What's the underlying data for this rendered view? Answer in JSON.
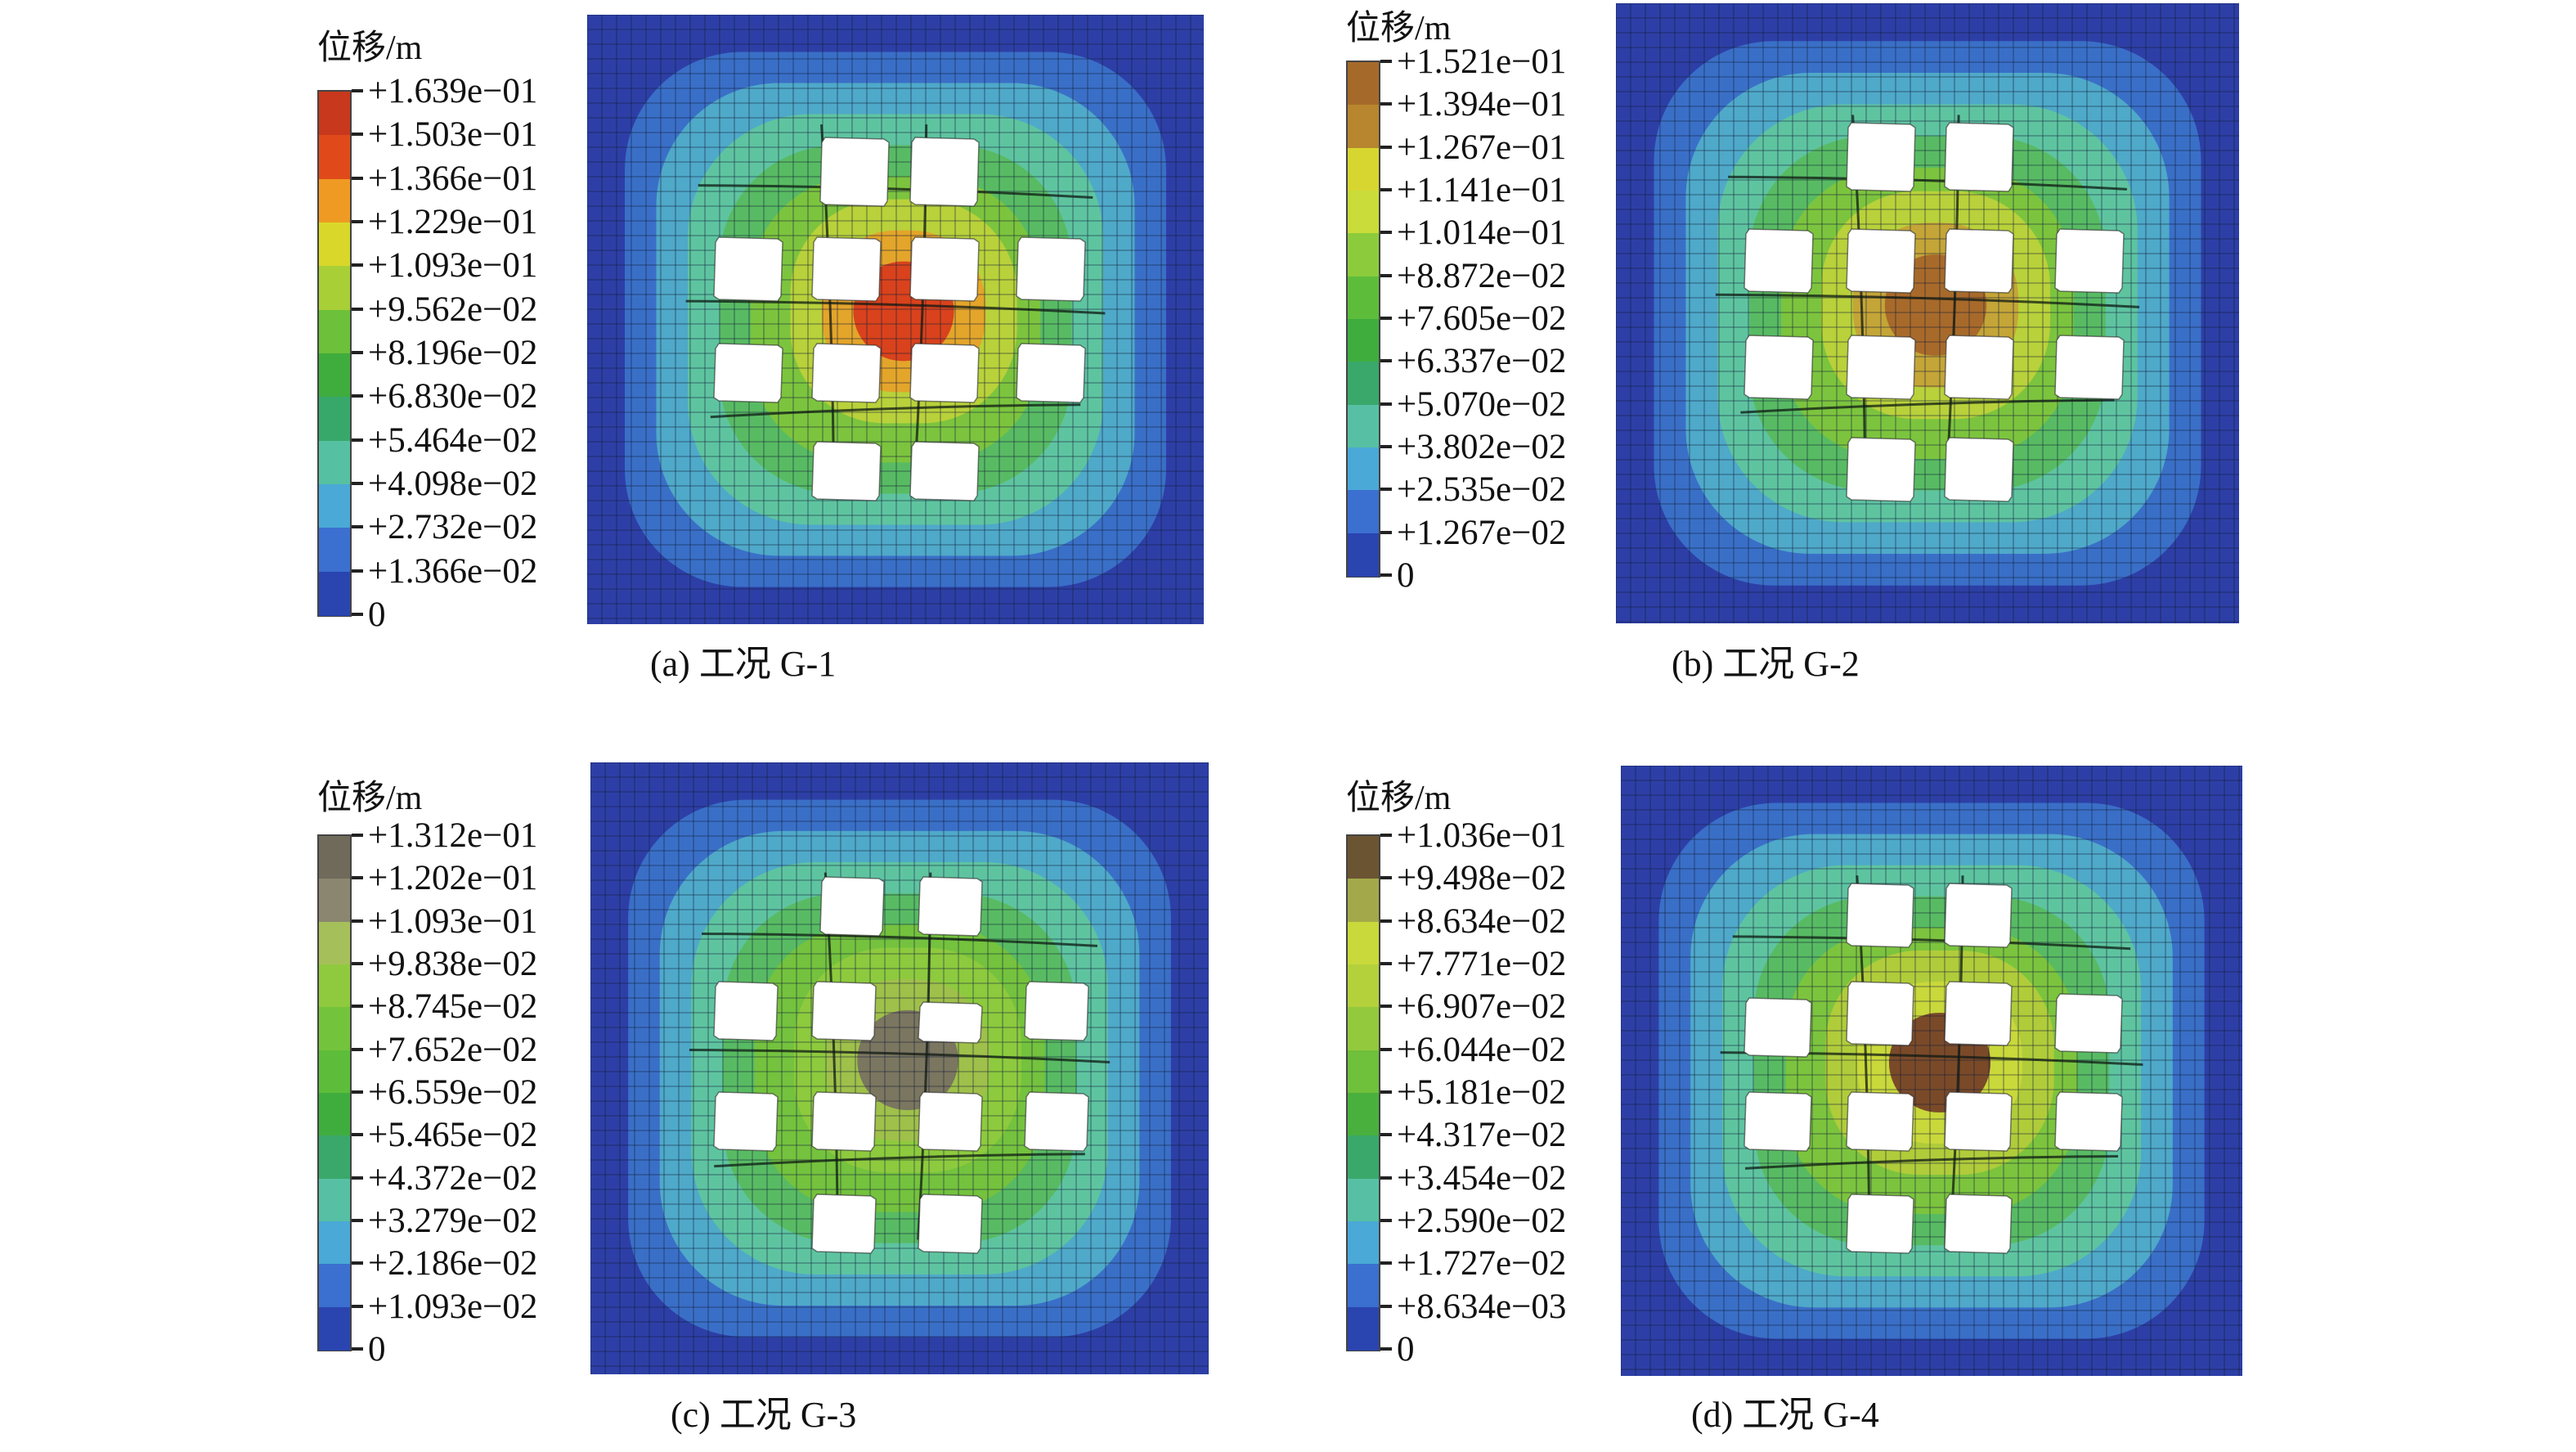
{
  "figure": {
    "panels": [
      {
        "id": "a",
        "legend_title": "位移/m",
        "legend_labels": [
          "+1.639e−01",
          "+1.503e−01",
          "+1.366e−01",
          "+1.229e−01",
          "+1.093e−01",
          "+9.562e−02",
          "+8.196e−02",
          "+6.830e−02",
          "+5.464e−02",
          "+4.098e−02",
          "+2.732e−02",
          "+1.366e−02",
          "0"
        ],
        "legend_colors": [
          "#c8381c",
          "#e04a1a",
          "#ef9a22",
          "#d9d82a",
          "#a8d036",
          "#6cc03a",
          "#3fad3e",
          "#38a86a",
          "#56c0a2",
          "#4aa9d6",
          "#3b6fd0",
          "#2a44b0"
        ],
        "plot_colors": [
          "#2d3fa6",
          "#3a6fc7",
          "#4fa9c9",
          "#5ec4a0",
          "#58bb63",
          "#7cc43e",
          "#b9d13a",
          "#e3a52a",
          "#d9421c"
        ],
        "caption": "(a) 工况 G-1"
      },
      {
        "id": "b",
        "legend_title": "位移/m",
        "legend_labels": [
          "+1.521e−01",
          "+1.394e−01",
          "+1.267e−01",
          "+1.141e−01",
          "+1.014e−01",
          "+8.872e−02",
          "+7.605e−02",
          "+6.337e−02",
          "+5.070e−02",
          "+3.802e−02",
          "+2.535e−02",
          "+1.267e−02",
          "0"
        ],
        "legend_colors": [
          "#a56a2a",
          "#b8862e",
          "#d7d630",
          "#c9dc3a",
          "#8ccc3c",
          "#5dbd3b",
          "#3fad3e",
          "#3aa86a",
          "#57c0a4",
          "#4aa9d6",
          "#3b6fd0",
          "#2a44b0"
        ],
        "plot_colors": [
          "#2d3fa6",
          "#3a6fc7",
          "#4fa9c9",
          "#5ec4a0",
          "#58bb63",
          "#7cc43e",
          "#b9d13a",
          "#c4a537",
          "#a86a2a"
        ],
        "caption": "(b) 工况 G-2"
      },
      {
        "id": "c",
        "legend_title": "位移/m",
        "legend_labels": [
          "+1.312e−01",
          "+1.202e−01",
          "+1.093e−01",
          "+9.838e−02",
          "+8.745e−02",
          "+7.652e−02",
          "+6.559e−02",
          "+5.465e−02",
          "+4.372e−02",
          "+3.279e−02",
          "+2.186e−02",
          "+1.093e−02",
          "0"
        ],
        "legend_colors": [
          "#6f6a5a",
          "#8a8670",
          "#a5c05a",
          "#8fca3e",
          "#74c33c",
          "#5dbd3b",
          "#3fad3e",
          "#3aa86a",
          "#57c0a4",
          "#4aa9d6",
          "#3b6fd0",
          "#2a44b0"
        ],
        "plot_colors": [
          "#2d3fa6",
          "#3a6fc7",
          "#4fa9c9",
          "#5ec4a0",
          "#58bb63",
          "#74c23e",
          "#8dca3e",
          "#9fc04a",
          "#7b765f"
        ],
        "caption": "(c) 工况 G-3"
      },
      {
        "id": "d",
        "legend_title": "位移/m",
        "legend_labels": [
          "+1.036e−01",
          "+9.498e−02",
          "+8.634e−02",
          "+7.771e−02",
          "+6.907e−02",
          "+6.044e−02",
          "+5.181e−02",
          "+4.317e−02",
          "+3.454e−02",
          "+2.590e−02",
          "+1.727e−02",
          "+8.634e−03",
          "0"
        ],
        "legend_colors": [
          "#6b5432",
          "#a3a94a",
          "#c9d83a",
          "#b4d13c",
          "#93c93d",
          "#6fc03b",
          "#49b03d",
          "#3aa86a",
          "#57c0a4",
          "#4aa9d6",
          "#3b6fd0",
          "#2a44b0"
        ],
        "plot_colors": [
          "#2d3fa6",
          "#3a6fc7",
          "#4fa9c9",
          "#5ec4a0",
          "#58bb63",
          "#7cc43e",
          "#b0cc3a",
          "#c9d83a",
          "#7a4a28"
        ],
        "caption": "(d) 工况 G-4"
      }
    ]
  }
}
